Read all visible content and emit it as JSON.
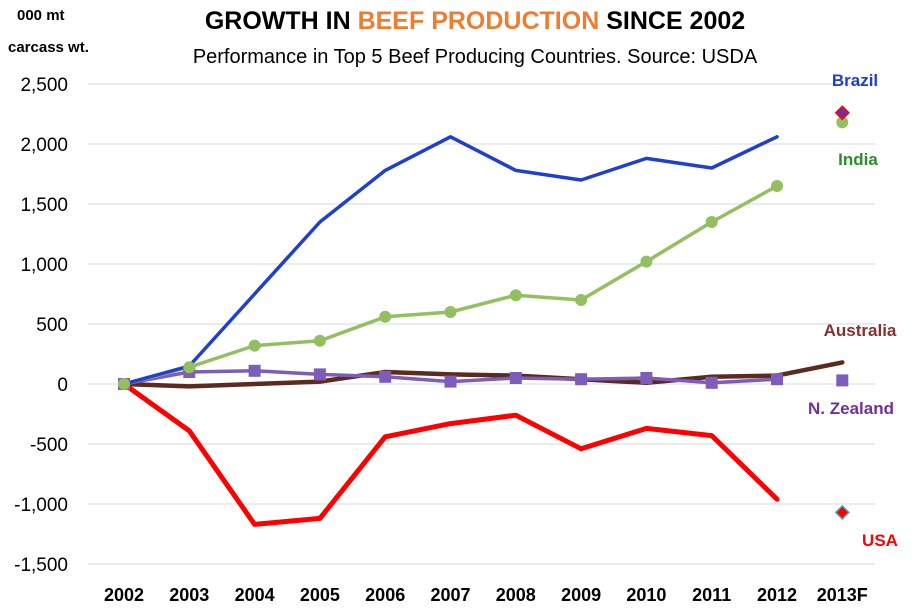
{
  "chart_data": {
    "type": "line",
    "title_parts": [
      {
        "text": "GROWTH IN ",
        "color": "#000000"
      },
      {
        "text": "BEEF PRODUCTION",
        "color": "#ed7d31"
      },
      {
        "text": " SINCE 2002",
        "color": "#000000"
      }
    ],
    "subtitle": "Performance in Top 5 Beef Producing Countries. Source: USDA",
    "ylabel_line1": "000 mt",
    "ylabel_line2": "carcass  wt.",
    "categories": [
      "2002",
      "2003",
      "2004",
      "2005",
      "2006",
      "2007",
      "2008",
      "2009",
      "2010",
      "2011",
      "2012",
      "2013F"
    ],
    "ylim": [
      -1500,
      2500
    ],
    "yticks": [
      -1500,
      -1000,
      -500,
      0,
      500,
      1000,
      1500,
      2000,
      2500
    ],
    "ytick_labels": [
      "-1,500",
      "-1,000",
      "-500",
      "0",
      "500",
      "1,000",
      "1,500",
      "2,000",
      "2,500"
    ],
    "grid": true,
    "series": [
      {
        "name": "Brazil",
        "color": "#1f3fce",
        "label_color": "#1f3fce",
        "marker": "none",
        "values": [
          0,
          150,
          750,
          1350,
          1780,
          2060,
          1780,
          1700,
          1880,
          1800,
          2060,
          null
        ],
        "forecast": 2260,
        "forecast_marker": "diamond"
      },
      {
        "name": "India",
        "color": "#92c060",
        "label_color": "#2e8b2e",
        "marker": "circle",
        "values": [
          0,
          140,
          320,
          360,
          560,
          600,
          740,
          700,
          1020,
          1350,
          1650,
          null
        ],
        "forecast": 2180,
        "forecast_marker": "circle"
      },
      {
        "name": "Australia",
        "color": "#5c2a1e",
        "label_color": "#8b2e2e",
        "marker": "none",
        "values": [
          0,
          -20,
          0,
          20,
          100,
          80,
          70,
          40,
          10,
          60,
          70,
          180
        ],
        "forecast": null,
        "forecast_marker": "none"
      },
      {
        "name": "N. Zealand",
        "color": "#7d5cba",
        "label_color": "#7030a0",
        "marker": "square",
        "values": [
          0,
          100,
          110,
          80,
          60,
          20,
          50,
          40,
          50,
          10,
          40,
          null
        ],
        "forecast": 30,
        "forecast_marker": "square"
      },
      {
        "name": "USA",
        "color": "#ff0000",
        "label_color": "#ff0000",
        "marker": "none",
        "values": [
          0,
          -390,
          -1170,
          -1120,
          -440,
          -330,
          -260,
          -540,
          -370,
          -430,
          -960,
          null
        ],
        "forecast": -1070,
        "forecast_marker": "diamond"
      }
    ]
  }
}
